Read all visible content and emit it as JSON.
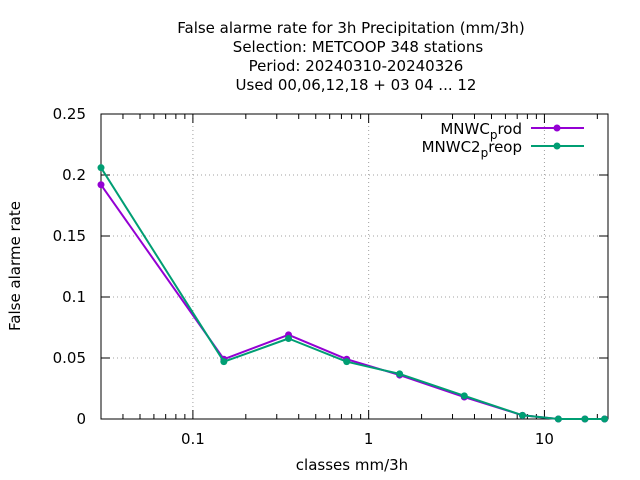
{
  "chart_data": {
    "type": "line",
    "title_lines": [
      "False alarme rate  for 3h Precipitation (mm/3h)",
      "Selection: METCOOP    348 stations",
      "Period: 20240310-20240326",
      "Used  00,06,12,18 + 03 04 ... 12"
    ],
    "xlabel": "classes mm/3h",
    "ylabel": "False alarme rate",
    "xscale": "log",
    "xlim": [
      0.03,
      23
    ],
    "ylim": [
      0,
      0.25
    ],
    "x_ticks": [
      "0.1",
      "1",
      "10"
    ],
    "y_ticks": [
      "0",
      "0.05",
      "0.1",
      "0.15",
      "0.2",
      "0.25"
    ],
    "grid": true,
    "legend_position": "top-right",
    "series": [
      {
        "name": "MNWC_prod",
        "legend_main": "MNWC",
        "legend_sub": "p",
        "legend_tail": "rod",
        "color": "#9400d3",
        "x": [
          0.03,
          0.15,
          0.35,
          0.75,
          1.5,
          3.5,
          7.5,
          12,
          17,
          22
        ],
        "y": [
          0.192,
          0.049,
          0.069,
          0.049,
          0.036,
          0.018,
          0.003,
          0.0,
          0.0,
          0.0
        ]
      },
      {
        "name": "MNWC2_preop",
        "legend_main": "MNWC2",
        "legend_sub": "p",
        "legend_tail": "reop",
        "color": "#009e73",
        "x": [
          0.03,
          0.15,
          0.35,
          0.75,
          1.5,
          3.5,
          7.5,
          12,
          17,
          22
        ],
        "y": [
          0.206,
          0.047,
          0.066,
          0.047,
          0.037,
          0.019,
          0.003,
          0.0,
          0.0,
          0.0
        ]
      }
    ]
  }
}
